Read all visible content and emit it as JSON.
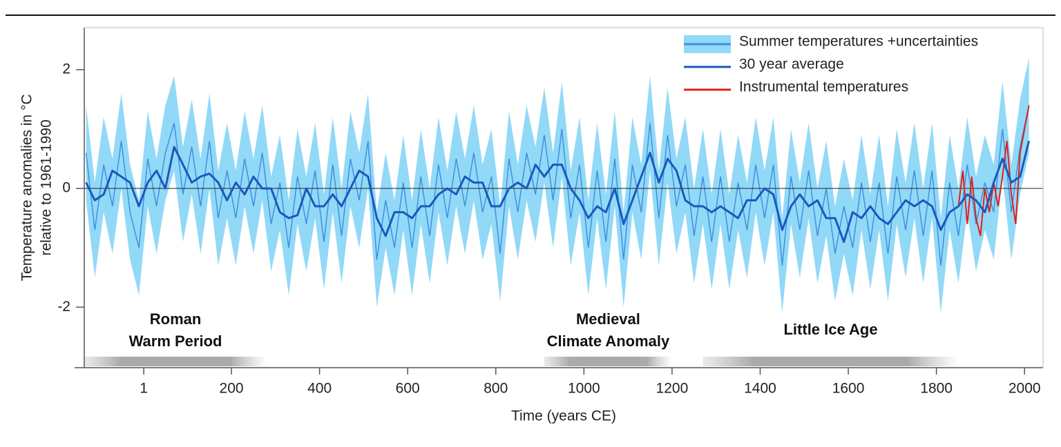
{
  "chart_data": {
    "type": "line",
    "xlabel": "Time (years CE)",
    "ylabel": [
      "Temperature anomalies in °C",
      "relative to 1961-1990"
    ],
    "xlim": [
      -134,
      2042
    ],
    "ylim": [
      -3.02,
      2.71
    ],
    "xticks": [
      1,
      200,
      400,
      600,
      800,
      1000,
      1200,
      1400,
      1600,
      1800,
      2000
    ],
    "yticks": [
      -2,
      0,
      2
    ],
    "legend": "top-right",
    "x": [
      -130,
      -110,
      -90,
      -70,
      -50,
      -30,
      -10,
      10,
      30,
      50,
      70,
      90,
      110,
      130,
      150,
      170,
      190,
      210,
      230,
      250,
      270,
      290,
      310,
      330,
      350,
      370,
      390,
      410,
      430,
      450,
      470,
      490,
      510,
      530,
      550,
      570,
      590,
      610,
      630,
      650,
      670,
      690,
      710,
      730,
      750,
      770,
      790,
      810,
      830,
      850,
      870,
      890,
      910,
      930,
      950,
      970,
      990,
      1010,
      1030,
      1050,
      1070,
      1090,
      1110,
      1130,
      1150,
      1170,
      1190,
      1210,
      1230,
      1250,
      1270,
      1290,
      1310,
      1330,
      1350,
      1370,
      1390,
      1410,
      1430,
      1450,
      1470,
      1490,
      1510,
      1530,
      1550,
      1570,
      1590,
      1610,
      1630,
      1650,
      1670,
      1690,
      1710,
      1730,
      1750,
      1770,
      1790,
      1810,
      1830,
      1850,
      1870,
      1890,
      1910,
      1930,
      1950,
      1970,
      1990,
      2010
    ],
    "series": [
      {
        "name": "Summer temperatures +uncertainties",
        "color": "#3f8fe0",
        "band_color": "#92d9f7",
        "uncertainty": 0.8,
        "values": [
          0.6,
          -0.7,
          0.4,
          -0.3,
          0.8,
          -0.4,
          -1.0,
          0.5,
          -0.3,
          0.6,
          1.1,
          -0.1,
          0.7,
          -0.3,
          0.8,
          -0.5,
          0.3,
          -0.5,
          0.5,
          -0.3,
          0.6,
          -0.6,
          0.1,
          -1.0,
          0.2,
          -0.6,
          0.3,
          -0.9,
          0.4,
          -0.8,
          0.5,
          -0.2,
          0.8,
          -1.2,
          -0.2,
          -1.0,
          0.1,
          -1.0,
          0.2,
          -0.8,
          0.4,
          -0.5,
          0.5,
          -0.3,
          0.6,
          -0.4,
          0.2,
          -1.1,
          0.5,
          -0.4,
          0.6,
          -0.1,
          0.9,
          -0.2,
          1.0,
          -0.5,
          0.4,
          -1.0,
          0.3,
          -0.9,
          0.5,
          -1.2,
          0.4,
          -0.4,
          1.1,
          -0.5,
          0.9,
          -0.3,
          0.4,
          -0.8,
          0.2,
          -0.9,
          0.2,
          -0.9,
          0.1,
          -0.7,
          0.4,
          -0.5,
          0.4,
          -1.3,
          0.2,
          -0.7,
          0.3,
          -0.8,
          0.0,
          -1.1,
          -0.3,
          -1.0,
          0.1,
          -0.9,
          0.1,
          -1.1,
          0.2,
          -0.7,
          0.3,
          -0.8,
          0.3,
          -1.3,
          0.1,
          -0.8,
          0.4,
          -0.6,
          0.1,
          -0.4,
          1.0,
          -0.4,
          0.7,
          1.4
        ]
      },
      {
        "name": "30 year average",
        "color": "#1a58bd",
        "values": [
          0.1,
          -0.2,
          -0.1,
          0.3,
          0.2,
          0.1,
          -0.3,
          0.1,
          0.3,
          0.0,
          0.7,
          0.4,
          0.1,
          0.2,
          0.25,
          0.1,
          -0.2,
          0.1,
          -0.1,
          0.2,
          0.0,
          0.0,
          -0.4,
          -0.5,
          -0.45,
          0.0,
          -0.3,
          -0.3,
          -0.1,
          -0.3,
          0.0,
          0.3,
          0.2,
          -0.5,
          -0.8,
          -0.4,
          -0.4,
          -0.5,
          -0.3,
          -0.3,
          -0.1,
          0.0,
          -0.1,
          0.2,
          0.1,
          0.1,
          -0.3,
          -0.3,
          0.0,
          0.1,
          0.0,
          0.4,
          0.2,
          0.4,
          0.4,
          0.0,
          -0.2,
          -0.5,
          -0.3,
          -0.4,
          0.0,
          -0.6,
          -0.2,
          0.2,
          0.6,
          0.1,
          0.5,
          0.3,
          -0.2,
          -0.3,
          -0.3,
          -0.4,
          -0.3,
          -0.4,
          -0.5,
          -0.2,
          -0.2,
          0.0,
          -0.1,
          -0.7,
          -0.3,
          -0.1,
          -0.3,
          -0.2,
          -0.5,
          -0.5,
          -0.9,
          -0.4,
          -0.5,
          -0.3,
          -0.5,
          -0.6,
          -0.4,
          -0.2,
          -0.3,
          -0.2,
          -0.3,
          -0.7,
          -0.4,
          -0.3,
          -0.1,
          -0.2,
          -0.4,
          0.1,
          0.5,
          0.1,
          0.2,
          0.8
        ]
      },
      {
        "name": "Instrumental temperatures",
        "color": "#e0201b",
        "x": [
          1850,
          1860,
          1870,
          1880,
          1890,
          1900,
          1910,
          1920,
          1930,
          1940,
          1950,
          1960,
          1970,
          1980,
          1990,
          2000,
          2010
        ],
        "values": [
          -0.3,
          0.3,
          -0.6,
          0.2,
          -0.5,
          -0.8,
          0.0,
          -0.4,
          0.1,
          -0.3,
          0.2,
          0.8,
          -0.1,
          -0.6,
          0.6,
          1.0,
          1.4
        ]
      }
    ],
    "periods": [
      {
        "label": [
          "Roman",
          "Warm Period"
        ],
        "start": -134,
        "end": 280
      },
      {
        "label": [
          "Medieval",
          "Climate Anomaly"
        ],
        "start": 910,
        "end": 1200
      },
      {
        "label": [
          "Little Ice Age"
        ],
        "start": 1270,
        "end": 1850
      }
    ]
  }
}
